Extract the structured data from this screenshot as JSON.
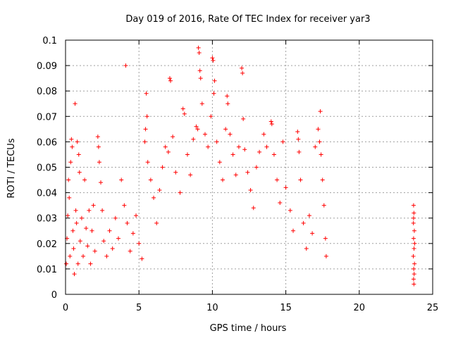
{
  "chart_data": {
    "type": "scatter",
    "title": "Day 019 of 2016, Rate Of TEC Index for receiver yar3",
    "xlabel": "GPS time / hours",
    "ylabel": "ROTI / TECUs",
    "xlim": [
      0,
      25
    ],
    "ylim": [
      0,
      0.1
    ],
    "x_ticks": [
      0,
      5,
      10,
      15,
      20,
      25
    ],
    "y_ticks": [
      0,
      0.01,
      0.02,
      0.03,
      0.04,
      0.05,
      0.06,
      0.07,
      0.08,
      0.09,
      0.1
    ],
    "x_tick_labels": [
      "0",
      "5",
      "10",
      "15",
      "20",
      "25"
    ],
    "y_tick_labels": [
      "0",
      "0.01",
      "0.02",
      "0.03",
      "0.04",
      "0.05",
      "0.06",
      "0.07",
      "0.08",
      "0.09",
      "0.1"
    ],
    "grid": true,
    "marker": "plus",
    "color": "#ff0000",
    "series": [
      {
        "points": [
          [
            0.05,
            0.012
          ],
          [
            0.1,
            0.022
          ],
          [
            0.15,
            0.031
          ],
          [
            0.2,
            0.045
          ],
          [
            0.25,
            0.038
          ],
          [
            0.3,
            0.015
          ],
          [
            0.35,
            0.052
          ],
          [
            0.4,
            0.061
          ],
          [
            0.45,
            0.058
          ],
          [
            0.5,
            0.025
          ],
          [
            0.55,
            0.018
          ],
          [
            0.6,
            0.008
          ],
          [
            0.65,
            0.075
          ],
          [
            0.7,
            0.033
          ],
          [
            0.75,
            0.028
          ],
          [
            0.8,
            0.06
          ],
          [
            0.85,
            0.012
          ],
          [
            0.9,
            0.055
          ],
          [
            0.95,
            0.048
          ],
          [
            1.0,
            0.021
          ],
          [
            1.1,
            0.03
          ],
          [
            1.2,
            0.015
          ],
          [
            1.3,
            0.045
          ],
          [
            1.4,
            0.026
          ],
          [
            1.5,
            0.019
          ],
          [
            1.6,
            0.033
          ],
          [
            1.7,
            0.012
          ],
          [
            1.8,
            0.025
          ],
          [
            1.9,
            0.035
          ],
          [
            2.0,
            0.017
          ],
          [
            2.2,
            0.062
          ],
          [
            2.25,
            0.058
          ],
          [
            2.3,
            0.052
          ],
          [
            2.4,
            0.044
          ],
          [
            2.5,
            0.033
          ],
          [
            2.6,
            0.021
          ],
          [
            2.8,
            0.015
          ],
          [
            3.0,
            0.025
          ],
          [
            3.2,
            0.018
          ],
          [
            3.4,
            0.03
          ],
          [
            3.6,
            0.022
          ],
          [
            3.8,
            0.045
          ],
          [
            4.0,
            0.035
          ],
          [
            4.1,
            0.09
          ],
          [
            4.2,
            0.028
          ],
          [
            4.4,
            0.017
          ],
          [
            4.6,
            0.024
          ],
          [
            4.8,
            0.031
          ],
          [
            5.0,
            0.02
          ],
          [
            5.2,
            0.014
          ],
          [
            5.4,
            0.06
          ],
          [
            5.45,
            0.065
          ],
          [
            5.5,
            0.079
          ],
          [
            5.55,
            0.07
          ],
          [
            5.6,
            0.052
          ],
          [
            5.8,
            0.045
          ],
          [
            6.0,
            0.038
          ],
          [
            6.2,
            0.028
          ],
          [
            6.4,
            0.041
          ],
          [
            6.6,
            0.05
          ],
          [
            6.8,
            0.058
          ],
          [
            7.0,
            0.056
          ],
          [
            7.1,
            0.085
          ],
          [
            7.15,
            0.084
          ],
          [
            7.3,
            0.062
          ],
          [
            7.5,
            0.048
          ],
          [
            7.8,
            0.04
          ],
          [
            8.0,
            0.073
          ],
          [
            8.1,
            0.071
          ],
          [
            8.3,
            0.055
          ],
          [
            8.5,
            0.047
          ],
          [
            8.7,
            0.061
          ],
          [
            8.9,
            0.066
          ],
          [
            9.0,
            0.065
          ],
          [
            9.05,
            0.097
          ],
          [
            9.1,
            0.095
          ],
          [
            9.15,
            0.088
          ],
          [
            9.2,
            0.085
          ],
          [
            9.3,
            0.075
          ],
          [
            9.5,
            0.063
          ],
          [
            9.7,
            0.058
          ],
          [
            9.9,
            0.07
          ],
          [
            10.0,
            0.093
          ],
          [
            10.05,
            0.092
          ],
          [
            10.1,
            0.079
          ],
          [
            10.15,
            0.084
          ],
          [
            10.3,
            0.06
          ],
          [
            10.5,
            0.052
          ],
          [
            10.7,
            0.045
          ],
          [
            10.9,
            0.065
          ],
          [
            11.0,
            0.078
          ],
          [
            11.05,
            0.075
          ],
          [
            11.2,
            0.063
          ],
          [
            11.4,
            0.055
          ],
          [
            11.6,
            0.047
          ],
          [
            11.8,
            0.058
          ],
          [
            12.0,
            0.089
          ],
          [
            12.05,
            0.087
          ],
          [
            12.1,
            0.069
          ],
          [
            12.2,
            0.057
          ],
          [
            12.4,
            0.048
          ],
          [
            12.6,
            0.041
          ],
          [
            12.8,
            0.034
          ],
          [
            13.0,
            0.05
          ],
          [
            13.2,
            0.056
          ],
          [
            13.5,
            0.063
          ],
          [
            13.7,
            0.058
          ],
          [
            14.0,
            0.068
          ],
          [
            14.05,
            0.067
          ],
          [
            14.2,
            0.055
          ],
          [
            14.4,
            0.045
          ],
          [
            14.6,
            0.036
          ],
          [
            14.8,
            0.06
          ],
          [
            15.0,
            0.042
          ],
          [
            15.3,
            0.033
          ],
          [
            15.5,
            0.025
          ],
          [
            15.8,
            0.064
          ],
          [
            15.85,
            0.061
          ],
          [
            15.9,
            0.056
          ],
          [
            16.0,
            0.045
          ],
          [
            16.2,
            0.028
          ],
          [
            16.4,
            0.018
          ],
          [
            16.6,
            0.031
          ],
          [
            16.8,
            0.024
          ],
          [
            17.0,
            0.058
          ],
          [
            17.2,
            0.065
          ],
          [
            17.3,
            0.06
          ],
          [
            17.35,
            0.072
          ],
          [
            17.4,
            0.055
          ],
          [
            17.5,
            0.045
          ],
          [
            17.6,
            0.035
          ],
          [
            17.7,
            0.022
          ],
          [
            17.75,
            0.015
          ],
          [
            23.7,
            0.035
          ],
          [
            23.72,
            0.032
          ],
          [
            23.75,
            0.025
          ],
          [
            23.7,
            0.022
          ],
          [
            23.73,
            0.018
          ],
          [
            23.68,
            0.015
          ],
          [
            23.76,
            0.012
          ],
          [
            23.71,
            0.01
          ],
          [
            23.74,
            0.008
          ],
          [
            23.7,
            0.006
          ],
          [
            23.72,
            0.004
          ],
          [
            23.69,
            0.028
          ],
          [
            23.77,
            0.02
          ],
          [
            23.7,
            0.03
          ]
        ]
      }
    ]
  }
}
